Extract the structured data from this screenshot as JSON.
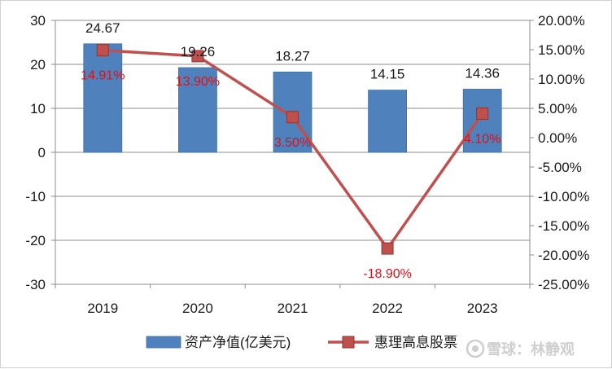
{
  "chart_data": {
    "type": "bar+line",
    "categories": [
      "2019",
      "2020",
      "2021",
      "2022",
      "2023"
    ],
    "bar_series": {
      "name": "资产净值(亿美元)",
      "values": [
        24.67,
        19.26,
        18.27,
        14.15,
        14.36
      ],
      "labels": [
        "24.67",
        "19.26",
        "18.27",
        "14.15",
        "14.36"
      ],
      "color": "#4f81bd"
    },
    "line_series": {
      "name": "惠理高息股票",
      "values": [
        14.91,
        13.9,
        3.5,
        -18.9,
        4.1
      ],
      "labels": [
        "14.91%",
        "13.90%",
        "3.50%",
        "-18.90%",
        "4.10%"
      ],
      "color": "#c0504d",
      "label_color": "#d4141c"
    },
    "y_left": {
      "range": [
        -30,
        30
      ],
      "ticks": [
        30,
        20,
        10,
        0,
        -10,
        -20,
        -30
      ],
      "tick_labels": [
        "30",
        "20",
        "10",
        "0",
        "-10",
        "-20",
        "-30"
      ]
    },
    "y_right": {
      "range": [
        -25,
        20
      ],
      "ticks": [
        20,
        15,
        10,
        5,
        0,
        -5,
        -10,
        -15,
        -20,
        -25
      ],
      "tick_labels": [
        "20.00%",
        "15.00%",
        "10.00%",
        "5.00%",
        "0.00%",
        "-5.00%",
        "-10.00%",
        "-15.00%",
        "-20.00%",
        "-25.00%"
      ]
    },
    "grid": true,
    "legend": "bottom"
  },
  "watermark": {
    "icon": "snowball-icon",
    "text": "雪球：林静观"
  }
}
